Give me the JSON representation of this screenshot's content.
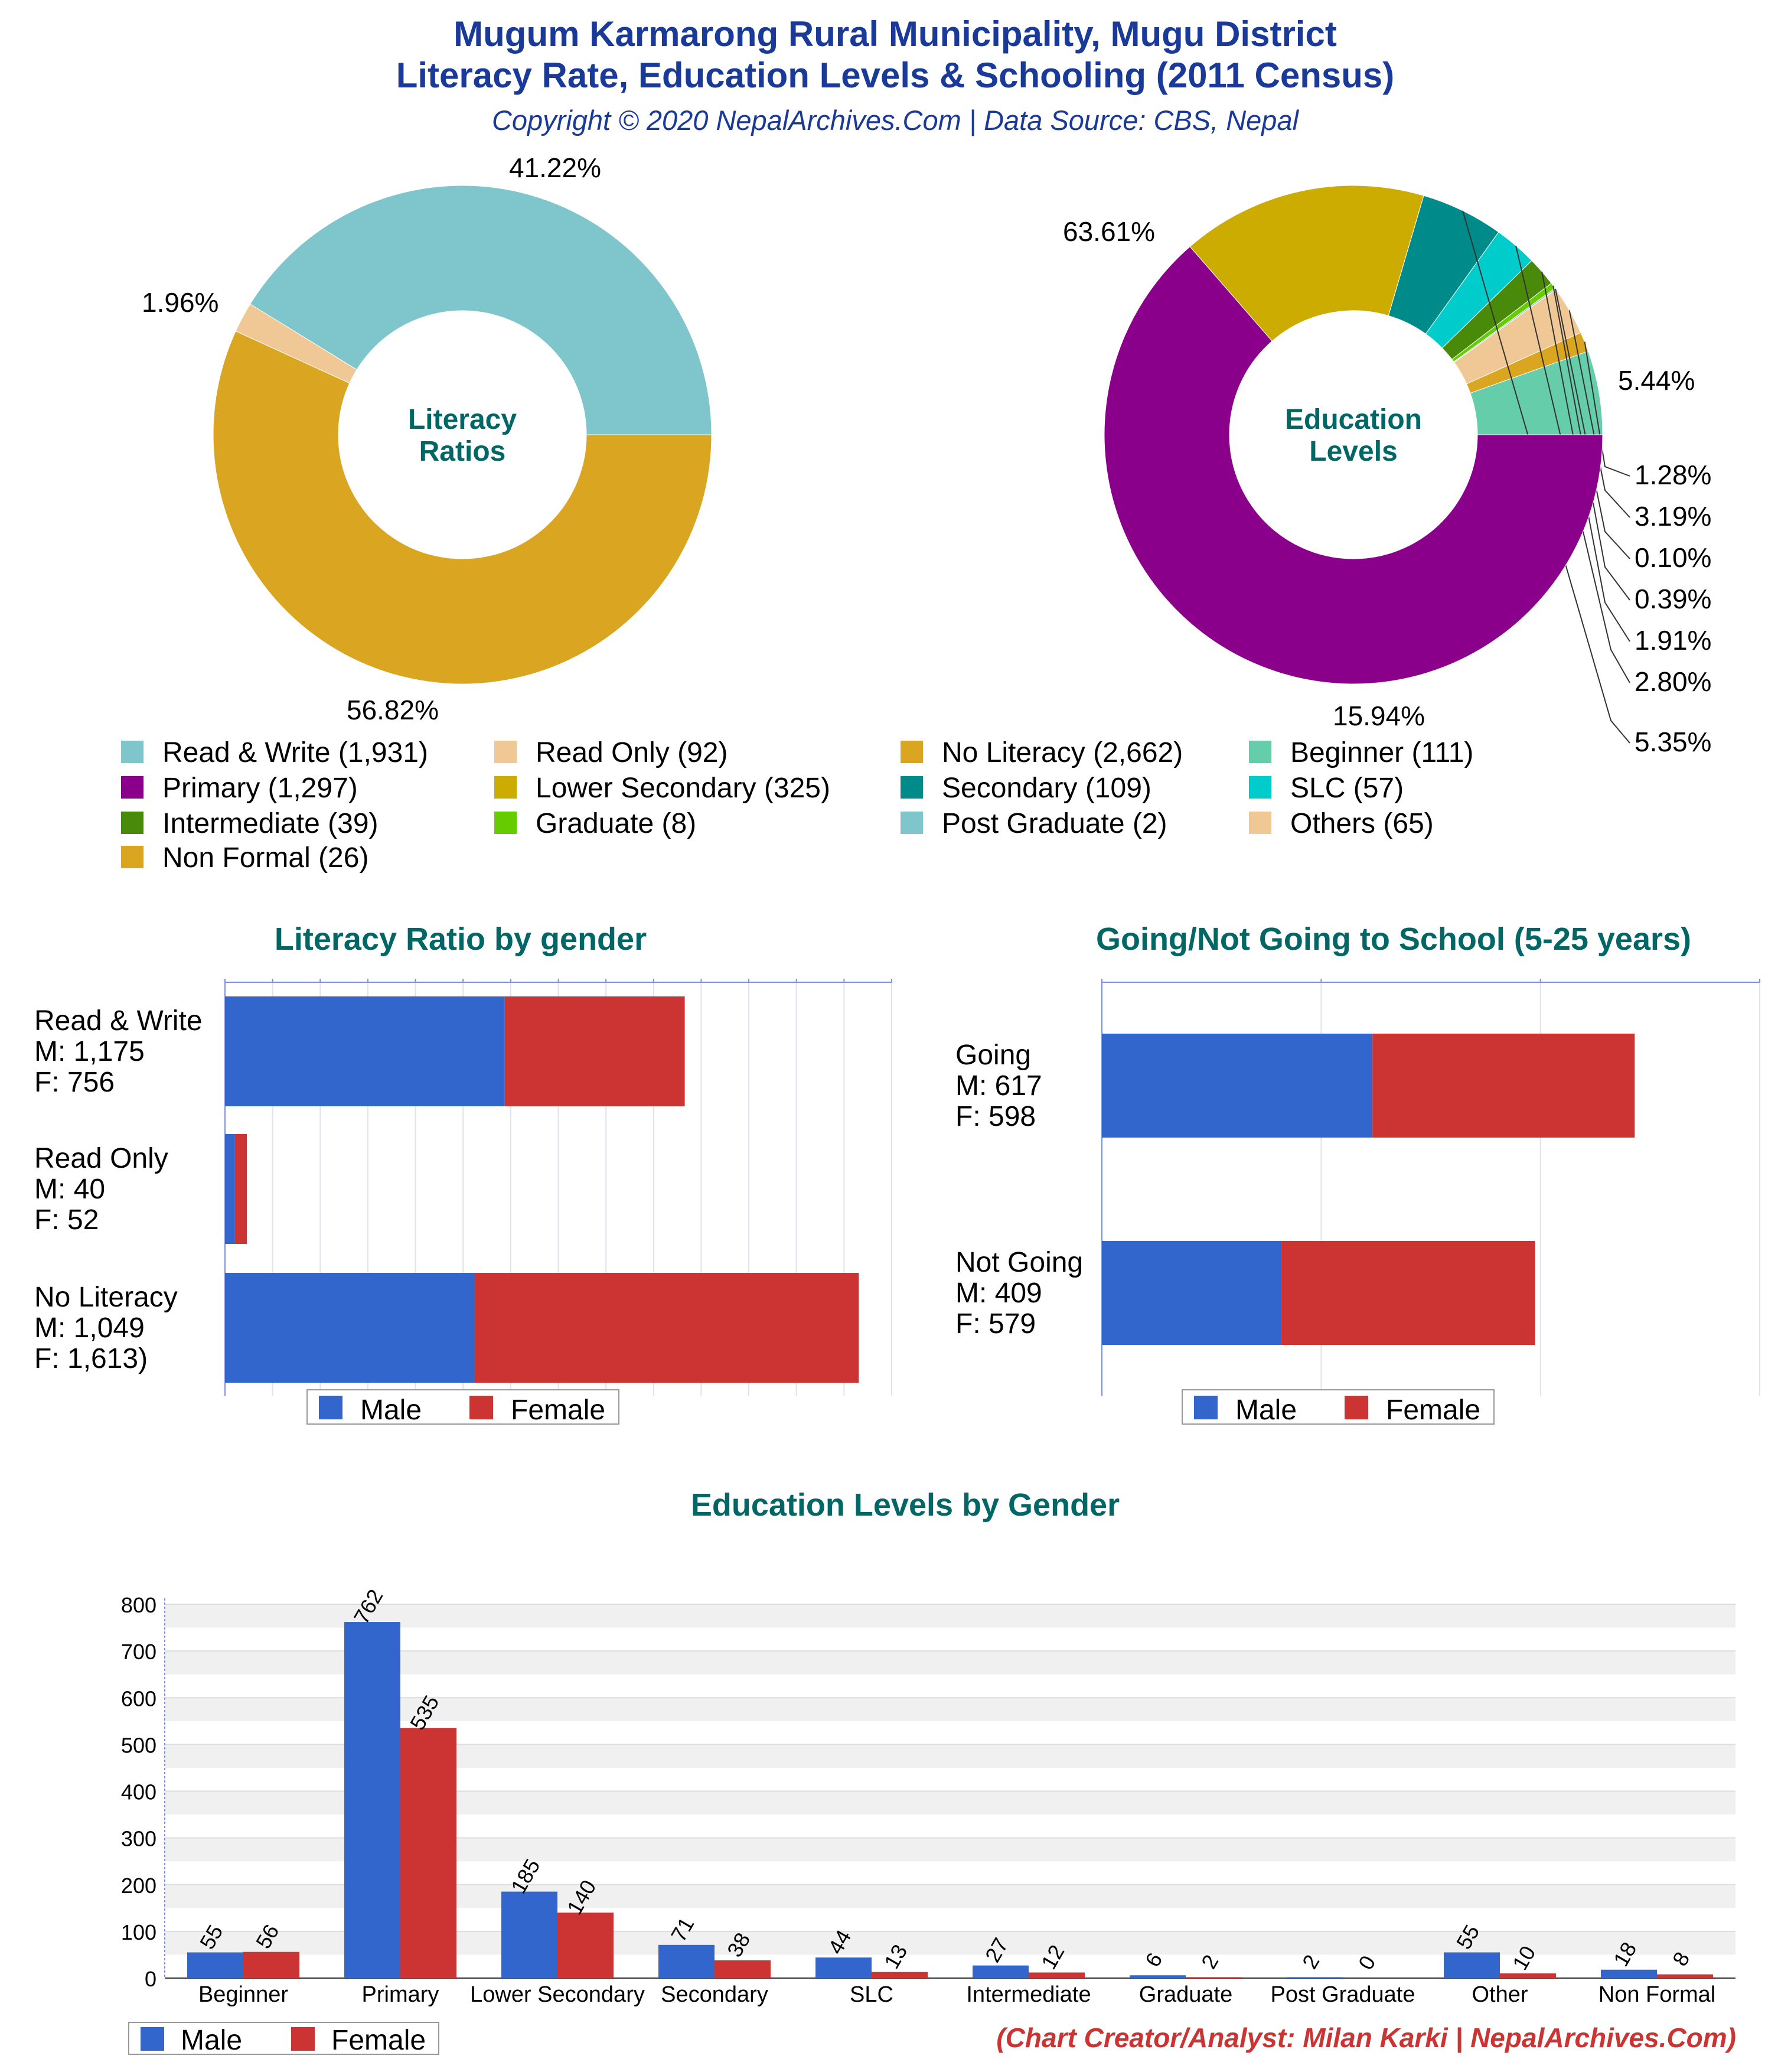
{
  "header": {
    "title_line1": "Mugum Karmarong Rural Municipality, Mugu District",
    "title_line2": "Literacy Rate, Education Levels & Schooling (2011 Census)",
    "subtitle": "Copyright © 2020 NepalArchives.Com | Data Source: CBS, Nepal"
  },
  "footer": {
    "credit": "(Chart Creator/Analyst: Milan Karki | NepalArchives.Com)"
  },
  "colors": {
    "title": "#1a3a9a",
    "heading": "#006666",
    "male": "#3366cc",
    "female": "#cc3333",
    "credit": "#cc3333"
  },
  "chart_data": [
    {
      "type": "pie",
      "variant": "donut",
      "center_label": [
        "Literacy",
        "Ratios"
      ],
      "slices": [
        {
          "label": "Read & Write",
          "value": 1931,
          "percent_label": "41.22%",
          "color": "#7ec5cc"
        },
        {
          "label": "Read Only",
          "value": 92,
          "percent_label": "1.96%",
          "color": "#f0c896"
        },
        {
          "label": "No Literacy",
          "value": 2662,
          "percent_label": "56.82%",
          "color": "#daa520"
        }
      ]
    },
    {
      "type": "pie",
      "variant": "donut",
      "center_label": [
        "Education",
        "Levels"
      ],
      "slices": [
        {
          "label": "Beginner",
          "value": 111,
          "percent_label": "5.44%",
          "color": "#66cdaa"
        },
        {
          "label": "Non Formal",
          "value": 26,
          "percent_label": "1.28%",
          "color": "#daa520"
        },
        {
          "label": "Others",
          "value": 65,
          "percent_label": "3.19%",
          "color": "#f0c896"
        },
        {
          "label": "Post Graduate",
          "value": 2,
          "percent_label": "0.10%",
          "color": "#7ec5cc"
        },
        {
          "label": "Graduate",
          "value": 8,
          "percent_label": "0.39%",
          "color": "#66cc00"
        },
        {
          "label": "Intermediate",
          "value": 39,
          "percent_label": "1.91%",
          "color": "#4a8a0a"
        },
        {
          "label": "SLC",
          "value": 57,
          "percent_label": "2.80%",
          "color": "#00cccc"
        },
        {
          "label": "Secondary",
          "value": 109,
          "percent_label": "5.35%",
          "color": "#008b8b"
        },
        {
          "label": "Lower Secondary",
          "value": 325,
          "percent_label": "15.94%",
          "color": "#ccac00"
        },
        {
          "label": "Primary",
          "value": 1297,
          "percent_label": "63.61%",
          "color": "#8b008b"
        }
      ]
    },
    {
      "type": "bar",
      "orientation": "horizontal",
      "stacked": true,
      "title": "Literacy Ratio by gender",
      "xlim": [
        0,
        2800
      ],
      "categories": [
        [
          "Read & Write",
          "M: 1,175",
          "F: 756"
        ],
        [
          "Read Only",
          "M: 40",
          "F: 52"
        ],
        [
          "No Literacy",
          "M: 1,049",
          "F: 1,613)"
        ]
      ],
      "series": [
        {
          "name": "Male",
          "values": [
            1175,
            40,
            1049
          ]
        },
        {
          "name": "Female",
          "values": [
            756,
            52,
            1613
          ]
        }
      ],
      "legend": "bottom"
    },
    {
      "type": "bar",
      "orientation": "horizontal",
      "stacked": true,
      "title": "Going/Not Going to School (5-25 years)",
      "xlim": [
        0,
        1500
      ],
      "categories": [
        [
          "Going",
          "M: 617",
          "F: 598"
        ],
        [
          "Not Going",
          "M: 409",
          "F: 579"
        ]
      ],
      "series": [
        {
          "name": "Male",
          "values": [
            617,
            409
          ]
        },
        {
          "name": "Female",
          "values": [
            598,
            579
          ]
        }
      ],
      "legend": "bottom"
    },
    {
      "type": "bar",
      "orientation": "vertical",
      "stacked": false,
      "title": "Education Levels by Gender",
      "ylim": [
        0,
        800
      ],
      "yticks": [
        0,
        100,
        200,
        300,
        400,
        500,
        600,
        700,
        800
      ],
      "categories": [
        "Beginner",
        "Primary",
        "Lower Secondary",
        "Secondary",
        "SLC",
        "Intermediate",
        "Graduate",
        "Post Graduate",
        "Other",
        "Non Formal"
      ],
      "series": [
        {
          "name": "Male",
          "values": [
            55,
            762,
            185,
            71,
            44,
            27,
            6,
            2,
            55,
            18
          ]
        },
        {
          "name": "Female",
          "values": [
            56,
            535,
            140,
            38,
            13,
            12,
            2,
            0,
            10,
            8
          ]
        }
      ],
      "grid": true,
      "legend": "bottom-left"
    }
  ],
  "legend_grid": [
    {
      "label": "Read & Write (1,931)",
      "color": "#7ec5cc"
    },
    {
      "label": "Read Only (92)",
      "color": "#f0c896"
    },
    {
      "label": "No Literacy (2,662)",
      "color": "#daa520"
    },
    {
      "label": "Beginner (111)",
      "color": "#66cdaa"
    },
    {
      "label": "Primary (1,297)",
      "color": "#8b008b"
    },
    {
      "label": "Lower Secondary (325)",
      "color": "#ccac00"
    },
    {
      "label": "Secondary (109)",
      "color": "#008b8b"
    },
    {
      "label": "SLC (57)",
      "color": "#00cccc"
    },
    {
      "label": "Intermediate (39)",
      "color": "#4a8a0a"
    },
    {
      "label": "Graduate (8)",
      "color": "#66cc00"
    },
    {
      "label": "Post Graduate (2)",
      "color": "#7ec5cc"
    },
    {
      "label": "Others (65)",
      "color": "#f0c896"
    },
    {
      "label": "Non Formal (26)",
      "color": "#daa520"
    }
  ]
}
